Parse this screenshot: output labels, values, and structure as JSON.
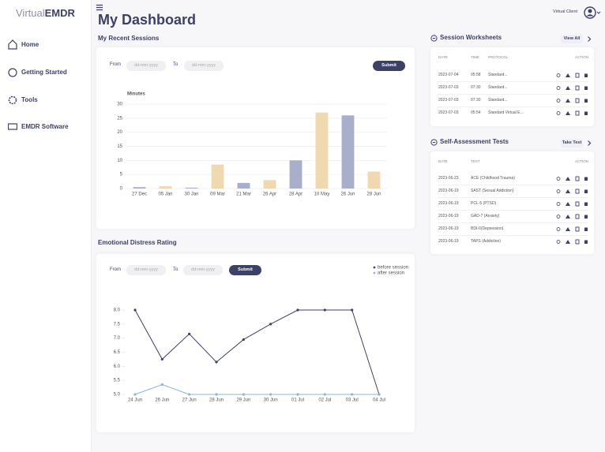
{
  "sidebar": {
    "logo_light": "Virtual",
    "logo_bold": "EMDR",
    "nav": [
      "Home",
      "Getting Started",
      "Tools",
      "EMDR Software"
    ]
  },
  "header": {
    "title": "My Dashboard",
    "user": "Virtual Client"
  },
  "sessions": {
    "heading": "My Recent Sessions",
    "from": "From",
    "to": "To",
    "placeholder": "dd-mm-yyyy",
    "submit": "Submit",
    "chart": {
      "type": "bar",
      "title": "Minutes",
      "categories": [
        "27 Dec",
        "05 Jan",
        "30 Jan",
        "09 Mar",
        "21 Mar",
        "26 Apr",
        "28 Apr",
        "10 May",
        "26 Jun",
        "28 Jun"
      ],
      "values": [
        0.5,
        0.8,
        0.3,
        8.5,
        2,
        3,
        10,
        27,
        26,
        6
      ],
      "colors": [
        "#a9aecb",
        "#f0d8b0",
        "#a9aecb",
        "#f0d8b0",
        "#a9aecb",
        "#f0d8b0",
        "#a9aecb",
        "#f0d8b0",
        "#a9aecb",
        "#f0d8b0"
      ],
      "ylim": [
        0,
        30
      ],
      "yticks": [
        0,
        5,
        10,
        15,
        20,
        25,
        30
      ],
      "grid": true
    }
  },
  "distress": {
    "heading": "Emotional Distress Rating",
    "from": "From",
    "to": "To",
    "placeholder": "dd-mm-yyyy",
    "submit": "Submit",
    "chart": {
      "type": "line",
      "categories": [
        "24 Jun",
        "26 Jun",
        "27 Jun",
        "28 Jun",
        "29 Jun",
        "30 Jun",
        "01 Jul",
        "02 Jul",
        "03 Jul",
        "04 Jul"
      ],
      "series": [
        {
          "name": "before session",
          "color": "#3d4166",
          "values": [
            8.0,
            6.25,
            7.15,
            6.15,
            6.95,
            7.5,
            8.0,
            8.0,
            8.0,
            5.0
          ]
        },
        {
          "name": "after session",
          "color": "#8fb3dd",
          "values": [
            5.0,
            5.35,
            5.0,
            5.0,
            5.0,
            5.0,
            5.0,
            5.0,
            5.0,
            5.0
          ]
        }
      ],
      "ylim": [
        5,
        8
      ],
      "yticks": [
        {
          "value": 5,
          "label": "5.0"
        },
        {
          "value": 5.5,
          "label": "5.5"
        },
        {
          "value": 6,
          "label": "6.0"
        },
        {
          "value": 6.5,
          "label": "6.5"
        },
        {
          "value": 7,
          "label": "7.0"
        },
        {
          "value": 7.5,
          "label": "7.5"
        },
        {
          "value": 8,
          "label": "8.0"
        }
      ],
      "grid": false,
      "legend": "upper right"
    }
  },
  "worksheets": {
    "heading": "Session Worksheets",
    "button": "View All",
    "columns": [
      "DATE",
      "TIME",
      "PROTOCOL",
      "ACTION"
    ],
    "rows": [
      [
        "2023-07-04",
        "05:58",
        "Standard..."
      ],
      [
        "2023-07-03",
        "07:30",
        "Standard..."
      ],
      [
        "2023-07-03",
        "07:30",
        "Standard..."
      ],
      [
        "2023-07-03",
        "05:54",
        "Standard Virtual E..."
      ]
    ]
  },
  "assessments": {
    "heading": "Self-Assessment Tests",
    "button": "Take Test",
    "columns": [
      "DATE",
      "TEST",
      "ACTION"
    ],
    "rows": [
      [
        "2023-06-23",
        "ACE (Childhood Trauma)"
      ],
      [
        "2023-06-19",
        "SAST (Sexual Addiction)"
      ],
      [
        "2023-06-19",
        "PCL-5 (PTSD)"
      ],
      [
        "2023-06-19",
        "GAD-7 (Anxiety)"
      ],
      [
        "2023-06-19",
        "BDI-II(Depression)"
      ],
      [
        "2023-06-19",
        "TAPS (Addiction)"
      ]
    ]
  }
}
